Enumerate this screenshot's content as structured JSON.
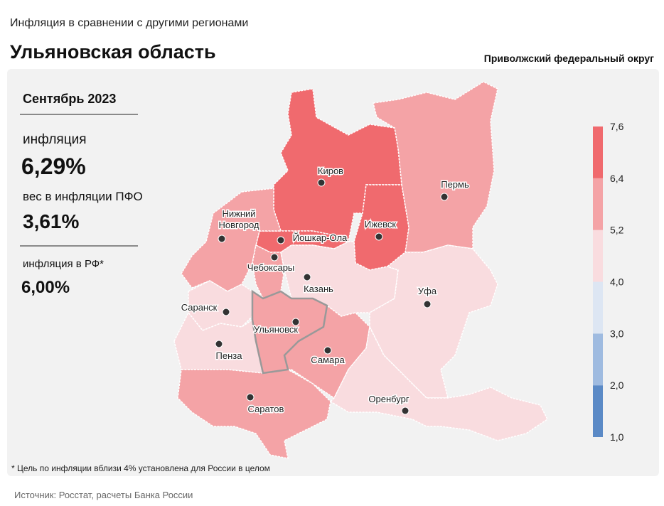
{
  "header": {
    "subtitle": "Инфляция  в сравнении  с другими регионами",
    "title": "Ульяновская область",
    "district": "Приволжский федеральный округ"
  },
  "panel": {
    "period": "Сентябрь 2023",
    "inflation_label": "инфляция",
    "inflation_value": "6,29%",
    "weight_label": "вес в инфляции ПФО",
    "weight_value": "3,61%",
    "rf_label": "инфляция в РФ*",
    "rf_value": "6,00%"
  },
  "cities": [
    [
      "Киров"
    ],
    [
      "Пермь"
    ],
    [
      "Нижний",
      "Новгород"
    ],
    [
      "Йошкар-Ола"
    ],
    [
      "Ижевск"
    ],
    [
      "Чебоксары"
    ],
    [
      "Казань"
    ],
    [
      "Уфа"
    ],
    [
      "Саранск"
    ],
    [
      "Ульяновск"
    ],
    [
      "Самара"
    ],
    [
      "Пенза"
    ],
    [
      "Оренбург"
    ],
    [
      "Саратов"
    ]
  ],
  "legend": {
    "ticks": [
      {
        "value": 1,
        "label": "1,0"
      },
      {
        "value": 2,
        "label": "2,0"
      },
      {
        "value": 3,
        "label": "3,0"
      },
      {
        "value": 4,
        "label": "4,0"
      },
      {
        "value": 5.2,
        "label": "5,2"
      },
      {
        "value": 6.4,
        "label": "6,4"
      },
      {
        "value": 7.6,
        "label": "7,6"
      }
    ],
    "colors": [
      "#5b8ac6",
      "#9fbbe0",
      "#dde6f3",
      "#f9dcdf",
      "#f4a3a6",
      "#f06a6e"
    ]
  },
  "footnote": "* Цель по инфляции вблизи 4% установлена для России в целом",
  "source": "Источник: Росстат, расчеты Банка России"
}
